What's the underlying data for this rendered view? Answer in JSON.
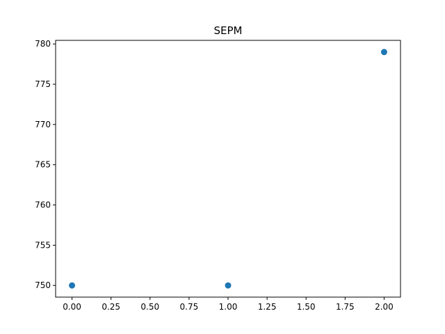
{
  "chart_data": {
    "type": "scatter",
    "title": "SEPM",
    "xlabel": "",
    "ylabel": "",
    "x": [
      0,
      1,
      2
    ],
    "y": [
      750,
      750,
      779
    ],
    "xlim": [
      -0.105,
      2.105
    ],
    "ylim": [
      748.55,
      780.45
    ],
    "xticks": [
      0,
      0.25,
      0.5,
      0.75,
      1,
      1.25,
      1.5,
      1.75,
      2
    ],
    "xtick_labels": [
      "0.00",
      "0.25",
      "0.50",
      "0.75",
      "1.00",
      "1.25",
      "1.50",
      "1.75",
      "2.00"
    ],
    "yticks": [
      750,
      755,
      760,
      765,
      770,
      775,
      780
    ],
    "ytick_labels": [
      "750",
      "755",
      "760",
      "765",
      "770",
      "775",
      "780"
    ],
    "grid": false,
    "marker_color": "#1f77b4"
  }
}
